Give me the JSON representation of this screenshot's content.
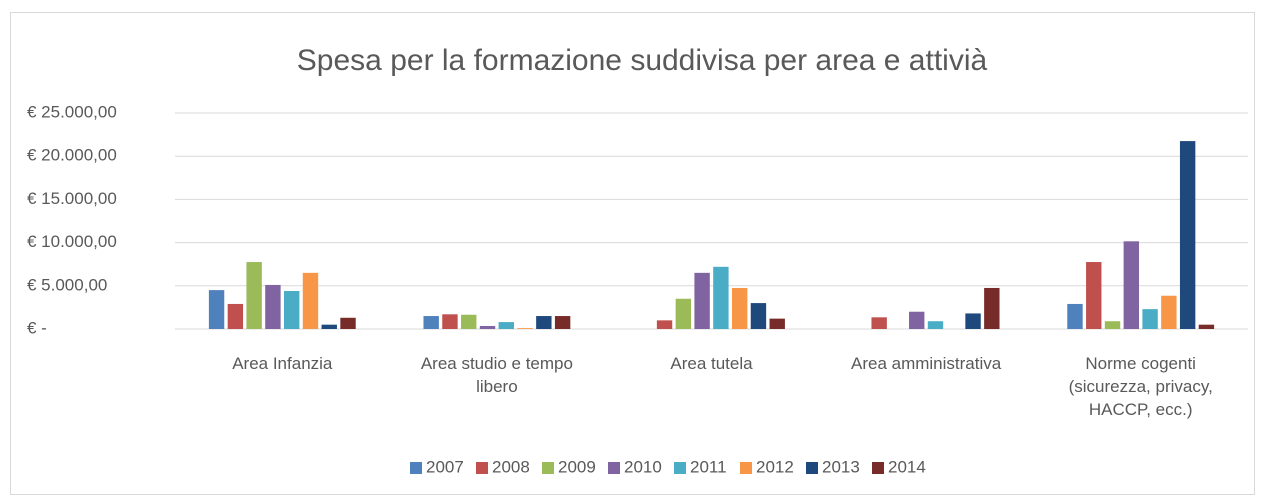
{
  "chart_data": {
    "type": "bar",
    "title": "Spesa per la formazione suddivisa per area e attivià",
    "categories": [
      "Area Infanzia",
      "Area studio e tempo libero",
      "Area tutela",
      "Area amministrativa",
      "Norme cogenti (sicurezza, privacy, HACCP, ecc.)"
    ],
    "series": [
      {
        "name": "2007",
        "color": "#4f81bd",
        "values": [
          4500,
          1500,
          0,
          0,
          2900
        ]
      },
      {
        "name": "2008",
        "color": "#c0504d",
        "values": [
          2900,
          1700,
          1000,
          1350,
          7750
        ]
      },
      {
        "name": "2009",
        "color": "#9bbb59",
        "values": [
          7750,
          1650,
          3500,
          0,
          900
        ]
      },
      {
        "name": "2010",
        "color": "#8064a2",
        "values": [
          5100,
          350,
          6500,
          2000,
          10150
        ]
      },
      {
        "name": "2011",
        "color": "#4bacc6",
        "values": [
          4400,
          800,
          7200,
          900,
          2300
        ]
      },
      {
        "name": "2012",
        "color": "#f79646",
        "values": [
          6500,
          100,
          4750,
          0,
          3850
        ]
      },
      {
        "name": "2013",
        "color": "#1f497d",
        "values": [
          500,
          1500,
          3000,
          1800,
          21750
        ]
      },
      {
        "name": "2014",
        "color": "#772c2a",
        "values": [
          1300,
          1500,
          1200,
          4750,
          500
        ]
      }
    ],
    "ylim": [
      0,
      25000
    ],
    "yticks": [
      {
        "value": 0,
        "label": "€ -"
      },
      {
        "value": 5000,
        "label": "€ 5.000,00"
      },
      {
        "value": 10000,
        "label": "€ 10.000,00"
      },
      {
        "value": 15000,
        "label": "€ 15.000,00"
      },
      {
        "value": 20000,
        "label": "€ 20.000,00"
      },
      {
        "value": 25000,
        "label": "€ 25.000,00"
      }
    ],
    "grid": true,
    "legend": "bottom"
  }
}
